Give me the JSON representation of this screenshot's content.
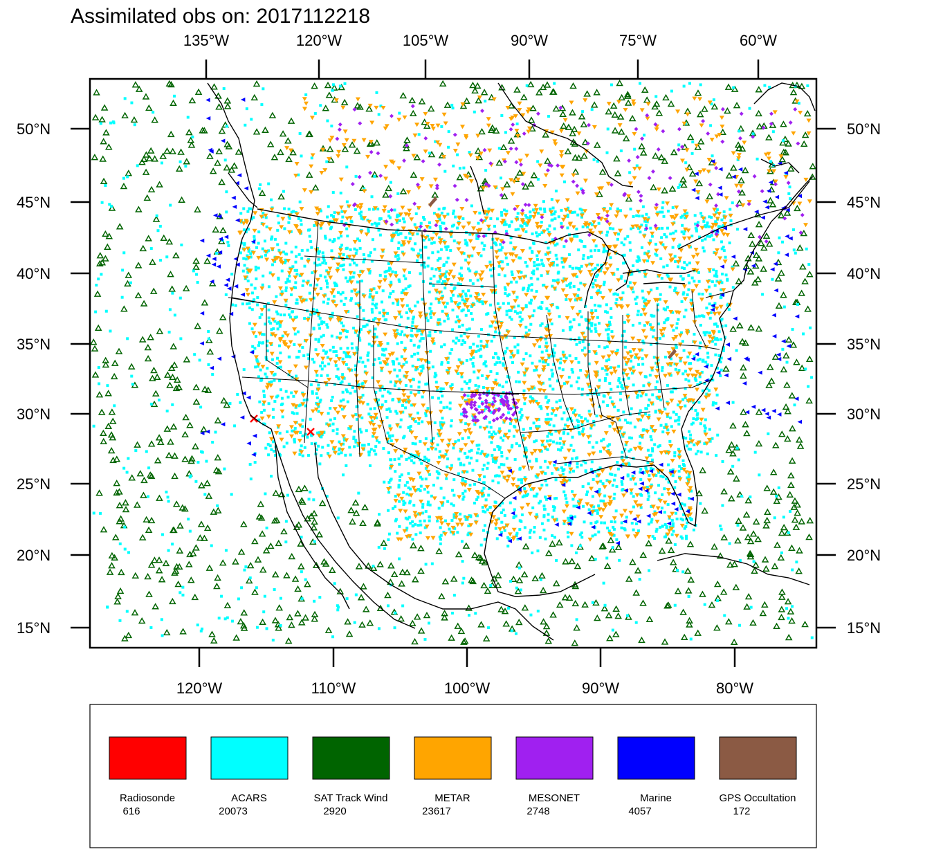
{
  "title": "Assimilated obs on: 2017112218",
  "top_axis": [
    "135°W",
    "120°W",
    "105°W",
    "90°W",
    "75°W",
    "60°W"
  ],
  "bottom_axis": [
    "120°W",
    "110°W",
    "100°W",
    "90°W",
    "80°W"
  ],
  "lat_axis": [
    "50°N",
    "45°N",
    "40°N",
    "35°N",
    "30°N",
    "25°N",
    "20°N",
    "15°N"
  ],
  "legend": [
    {
      "name": "Radiosonde",
      "count": "616",
      "color": "#ff0000",
      "marker": "x"
    },
    {
      "name": "ACARS",
      "count": "20073",
      "color": "#00ffff",
      "marker": "square"
    },
    {
      "name": "SAT Track Wind",
      "count": "2920",
      "color": "#006400",
      "marker": "triangle-up"
    },
    {
      "name": "METAR",
      "count": "23617",
      "color": "#ffa500",
      "marker": "triangle-down"
    },
    {
      "name": "MESONET",
      "count": "2748",
      "color": "#a020f0",
      "marker": "diamond"
    },
    {
      "name": "Marine",
      "count": "4057",
      "color": "#0000ff",
      "marker": "triangle-left"
    },
    {
      "name": "GPS Occultation",
      "count": "172",
      "color": "#8b5a44",
      "marker": "square"
    }
  ]
}
